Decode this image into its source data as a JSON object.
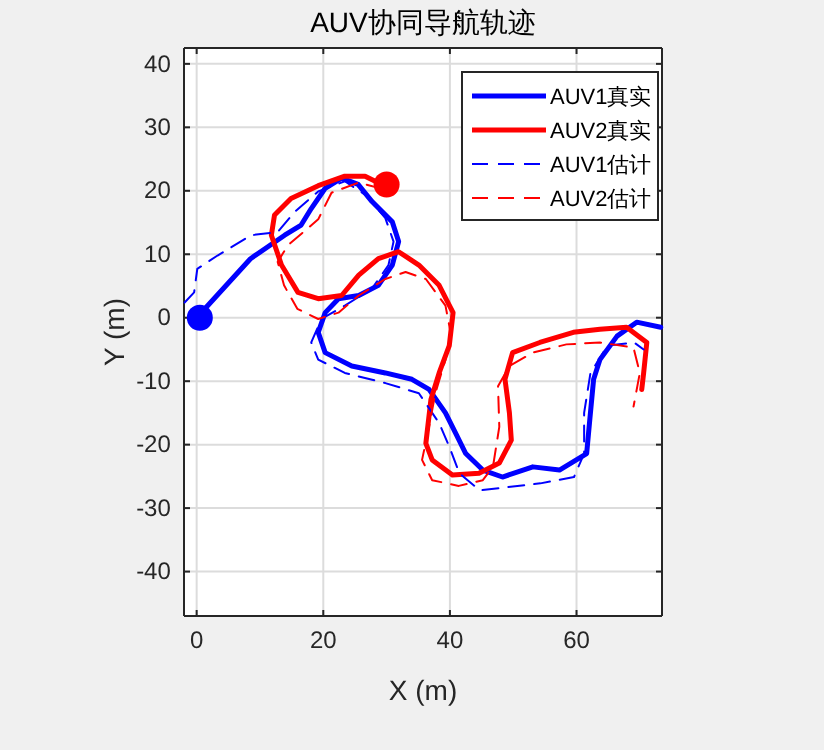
{
  "chart_data": {
    "type": "line",
    "title": "AUV协同导航轨迹",
    "xlabel": "X (m)",
    "ylabel": "Y (m)",
    "xlim": [
      -2,
      73.5
    ],
    "ylim": [
      -47,
      42.5
    ],
    "xticks": [
      0,
      20,
      40,
      60
    ],
    "yticks": [
      -40,
      -30,
      -20,
      -10,
      0,
      10,
      20,
      30,
      40
    ],
    "grid": true,
    "legend": "top right",
    "series": [
      {
        "name": "AUV1真实",
        "color": "#0000ff",
        "line_style": "solid",
        "x": [
          0,
          8.5,
          13.9,
          16.5,
          18.1,
          20.3,
          22.9,
          25.5,
          27.7,
          30.9,
          31.9,
          30.9,
          28.7,
          25.6,
          22.4,
          20.3,
          19.2,
          20.3,
          24.5,
          29.8,
          34,
          36.7,
          39.3,
          40.9,
          42.5,
          45.2,
          48.3,
          53.1,
          57.3,
          61.6,
          62.1,
          62.7,
          63.7,
          66.4,
          69.5,
          73.3
        ],
        "values": [
          0,
          9.3,
          13,
          14.6,
          17.2,
          20.4,
          22,
          21,
          18.3,
          15.1,
          12,
          8.3,
          5.1,
          3.5,
          3,
          0.8,
          -2.3,
          -5.5,
          -7.6,
          -8.7,
          -9.7,
          -11.3,
          -15,
          -18.2,
          -21.4,
          -24,
          -25.1,
          -23.5,
          -24,
          -21.4,
          -16,
          -9.7,
          -6.6,
          -2.9,
          -0.7,
          -1.5
        ]
      },
      {
        "name": "AUV2真实",
        "color": "#ff0000",
        "line_style": "solid",
        "x": [
          29.8,
          26.6,
          23.4,
          19.2,
          14.9,
          12.3,
          11.8,
          13.4,
          16,
          19.2,
          22.9,
          25.6,
          28.7,
          31.9,
          35.1,
          38.3,
          40.5,
          39.9,
          38.3,
          37,
          36.2,
          37.2,
          40.4,
          44.6,
          47.8,
          49.7,
          49.4,
          48.7,
          49.9,
          54.2,
          59.5,
          63.7,
          67.9,
          71.1,
          70.6,
          70.3
        ],
        "values": [
          20.7,
          22.3,
          22.3,
          20.8,
          18.8,
          16.2,
          13,
          8.3,
          4,
          3,
          3.5,
          6.7,
          9.3,
          10.4,
          8.3,
          5.1,
          0.8,
          -4.4,
          -8.7,
          -12.9,
          -19.8,
          -22.4,
          -24.8,
          -24.5,
          -22.9,
          -19.3,
          -15,
          -9.7,
          -5.5,
          -3.9,
          -2.3,
          -1.8,
          -1.5,
          -3.9,
          -8.7,
          -11.3
        ]
      },
      {
        "name": "AUV1估计",
        "color": "#0000ff",
        "line_style": "dashed",
        "x": [
          -1.9,
          -0.4,
          0.1,
          3.3,
          8.6,
          12.8,
          15.5,
          19.2,
          23.4,
          26.6,
          29.8,
          31.1,
          30.3,
          27.7,
          23.4,
          19.7,
          18.1,
          19.2,
          23.4,
          29.8,
          35.1,
          38.3,
          39.9,
          41.5,
          44.7,
          49,
          54.3,
          59.6,
          61.2,
          61.2,
          62.2,
          64.9,
          69.1,
          70.6
        ],
        "values": [
          2.4,
          4,
          7.7,
          9.8,
          13,
          13.5,
          16.7,
          19.9,
          21.5,
          19.4,
          15.7,
          12,
          8.3,
          4.6,
          1.9,
          -0.2,
          -3.9,
          -6.6,
          -8.7,
          -10.3,
          -11.9,
          -16.6,
          -20.3,
          -24.5,
          -27.2,
          -26.7,
          -26.1,
          -25.1,
          -21.4,
          -15,
          -8.7,
          -4.4,
          -3.9,
          -5
        ]
      },
      {
        "name": "AUV2估计",
        "color": "#ff0000",
        "line_style": "dashed",
        "x": [
          29.3,
          25.6,
          21.3,
          19.2,
          14.4,
          12.8,
          13.8,
          15.9,
          19.2,
          22.4,
          25.6,
          29.8,
          33,
          36.2,
          39.3,
          40.1,
          39.3,
          37.7,
          36.7,
          35.6,
          37.2,
          41.4,
          45.2,
          46.8,
          47.8,
          47.6,
          49.4,
          53.1,
          58.4,
          63.7,
          69,
          70,
          69
        ],
        "values": [
          20.3,
          21.3,
          19.7,
          15.5,
          11.4,
          8.8,
          5.1,
          1.4,
          -0.2,
          0.8,
          3.5,
          6.1,
          7.2,
          6.1,
          1.9,
          -2.3,
          -6.6,
          -11.9,
          -17.2,
          -22.4,
          -25.6,
          -26.5,
          -25.6,
          -23.5,
          -17.2,
          -10.8,
          -7.6,
          -5.5,
          -4.2,
          -3.9,
          -4.7,
          -8.7,
          -14
        ]
      },
      {
        "type": "scatter",
        "color": "#0000ff",
        "x": [
          0.5
        ],
        "values": [
          0
        ]
      },
      {
        "type": "scatter",
        "color": "#ff0000",
        "x": [
          30
        ],
        "values": [
          21
        ]
      }
    ]
  }
}
